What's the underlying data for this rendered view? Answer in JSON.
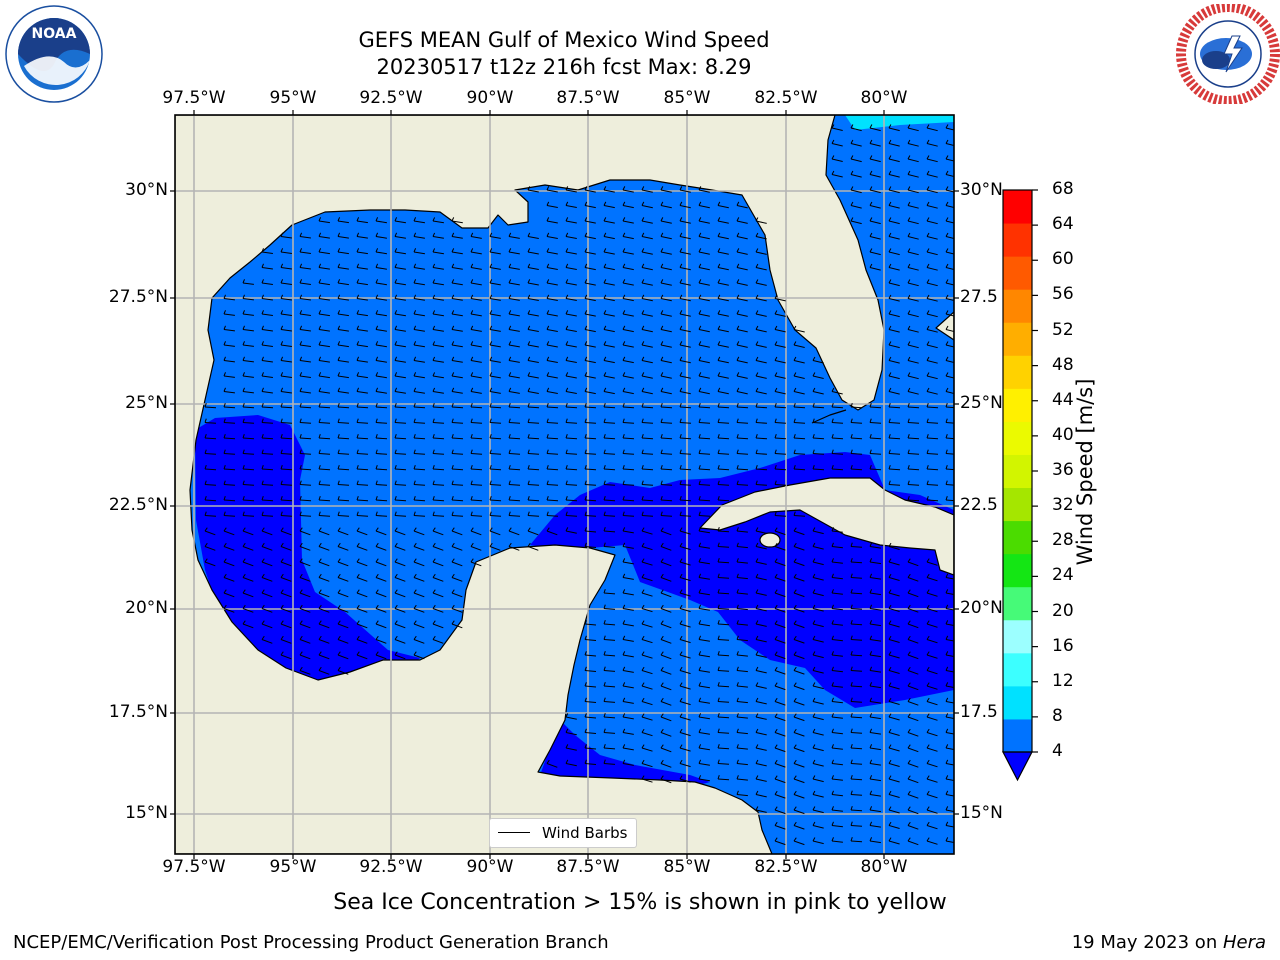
{
  "header": {
    "title_line1": "GEFS MEAN Gulf of Mexico Wind Speed",
    "title_line2": "20230517 t12z 216h fcst   Max: 8.29"
  },
  "logos": {
    "left": "noaa-logo",
    "left_text": "NOAA",
    "left_ring_text": "NATIONAL OCEANIC AND ATMOSPHERIC ADMINISTRATION · U.S. DEPARTMENT OF COMMERCE",
    "right": "national-weather-service-logo",
    "right_ring_text": "NATIONAL WEATHER SERVICE"
  },
  "map": {
    "lon_labels": [
      "97.5°W",
      "95°W",
      "92.5°W",
      "90°W",
      "87.5°W",
      "85°W",
      "82.5°W",
      "80°W"
    ],
    "lat_labels_left": [
      "30°N",
      "27.5°N",
      "25°N",
      "22.5°N",
      "20°N",
      "17.5°N",
      "15°N"
    ],
    "lat_labels_right": [
      "30°N",
      "27.5",
      "25°N",
      "22.5",
      "20°N",
      "17.5",
      "15°N"
    ],
    "land_color": "#eeeedc",
    "grid_color": "#b4b4b4",
    "legend_label": "Wind Barbs"
  },
  "colorbar": {
    "title": "Wind Speed [m/s]",
    "tick_labels": [
      "68",
      "64",
      "60",
      "56",
      "52",
      "48",
      "44",
      "40",
      "36",
      "32",
      "28",
      "24",
      "20",
      "16",
      "12",
      "8",
      "4"
    ],
    "colors_bottom_to_top": [
      "#0073ff",
      "#00e1ff",
      "#3cffff",
      "#9cffff",
      "#46fa78",
      "#14e614",
      "#4bdc00",
      "#a5e600",
      "#d2f500",
      "#ebfa00",
      "#fff000",
      "#ffd200",
      "#ffae00",
      "#ff8700",
      "#ff5a00",
      "#ff3200",
      "#ff0000"
    ],
    "under_color": "#0000ff"
  },
  "chart_data": {
    "type": "heatmap",
    "variable": "Wind Speed",
    "units": "m/s",
    "max": 8.29,
    "levels": [
      4,
      8,
      12,
      16,
      20,
      24,
      28,
      32,
      36,
      40,
      44,
      48,
      52,
      56,
      60,
      64,
      68
    ],
    "lon_range": [
      -98.5,
      -78.7
    ],
    "lat_range": [
      14.0,
      31.8
    ],
    "regions": [
      {
        "label": "< 4",
        "color": "#0000ff"
      },
      {
        "label": "4-8",
        "color": "#0073ff"
      },
      {
        "label": "8-12",
        "color": "#00e1ff"
      }
    ]
  },
  "footer": {
    "note": "Sea Ice Concentration > 15% is shown in pink to yellow",
    "credit": "NCEP/EMC/Verification Post Processing Product Generation Branch",
    "date_prefix": "19 May 2023 on ",
    "host": "Hera"
  }
}
